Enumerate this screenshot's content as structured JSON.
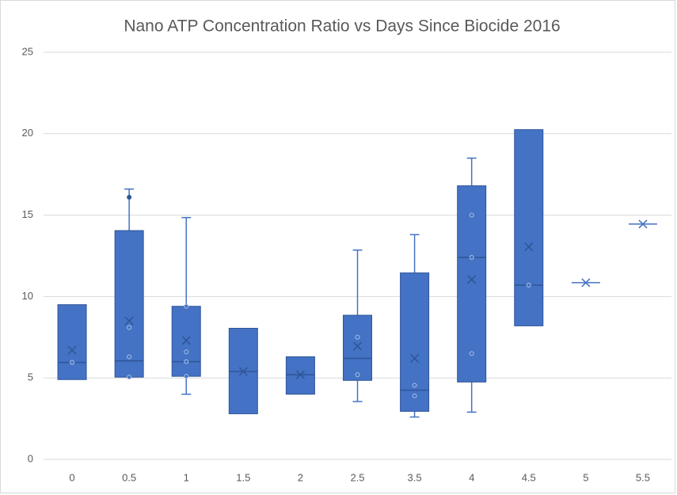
{
  "chart_data": {
    "type": "box",
    "title": "Nano ATP Concentration Ratio vs Days Since Biocide 2016",
    "color": "#4472c4",
    "categories": [
      "0",
      "0.5",
      "1",
      "1.5",
      "2",
      "2.5",
      "3.5",
      "4",
      "4.5",
      "5",
      "5.5"
    ],
    "boxes": [
      {
        "min": 4.9,
        "q1": 4.9,
        "median": 5.95,
        "q3": 9.5,
        "max": 9.5,
        "mean": 6.7,
        "points": [
          5.95
        ],
        "outliers": []
      },
      {
        "min": 5.05,
        "q1": 5.05,
        "median": 6.05,
        "q3": 14.05,
        "max": 16.6,
        "mean": 8.5,
        "points": [
          8.1,
          6.3,
          5.05
        ],
        "outliers": [
          16.1
        ]
      },
      {
        "min": 4.0,
        "q1": 5.1,
        "median": 6.0,
        "q3": 9.4,
        "max": 14.85,
        "mean": 7.3,
        "points": [
          9.4,
          6.6,
          6.0,
          5.1
        ],
        "outliers": []
      },
      {
        "min": 2.8,
        "q1": 2.8,
        "median": 5.4,
        "q3": 8.05,
        "max": 8.05,
        "mean": 5.4,
        "points": [],
        "outliers": []
      },
      {
        "min": 4.0,
        "q1": 4.0,
        "median": 5.2,
        "q3": 6.3,
        "max": 6.3,
        "mean": 5.2,
        "points": [],
        "outliers": []
      },
      {
        "min": 3.55,
        "q1": 4.85,
        "median": 6.2,
        "q3": 8.85,
        "max": 12.85,
        "mean": 6.95,
        "points": [
          7.5,
          5.2
        ],
        "outliers": []
      },
      {
        "min": 2.6,
        "q1": 2.95,
        "median": 4.25,
        "q3": 11.45,
        "max": 13.8,
        "mean": 6.2,
        "points": [
          4.55,
          3.9
        ],
        "outliers": []
      },
      {
        "min": 2.9,
        "q1": 4.75,
        "median": 12.4,
        "q3": 16.8,
        "max": 18.5,
        "mean": 11.05,
        "points": [
          15.0,
          12.4,
          6.5
        ],
        "outliers": []
      },
      {
        "min": 8.2,
        "q1": 8.2,
        "median": 10.7,
        "q3": 20.25,
        "max": 20.25,
        "mean": 13.05,
        "points": [
          10.7
        ],
        "outliers": []
      },
      {
        "min": 10.85,
        "q1": 10.85,
        "median": 10.85,
        "q3": 10.85,
        "max": 10.85,
        "mean": 10.85,
        "points": [],
        "outliers": []
      },
      {
        "min": 14.45,
        "q1": 14.45,
        "median": 14.45,
        "q3": 14.45,
        "max": 14.45,
        "mean": 14.45,
        "points": [],
        "outliers": []
      }
    ],
    "ylim": [
      0,
      25
    ],
    "yticks": [
      0,
      5,
      10,
      15,
      20,
      25
    ],
    "grid": true
  }
}
